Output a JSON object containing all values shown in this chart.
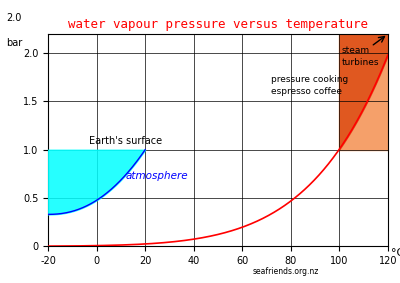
{
  "title": "water vapour pressure versus temperature",
  "title_color": "red",
  "xlim": [
    -20,
    120
  ],
  "ylim": [
    0,
    2.2
  ],
  "yticks": [
    0,
    0.5,
    1.0,
    1.5,
    2.0
  ],
  "xticks": [
    -20,
    0,
    20,
    40,
    60,
    80,
    100,
    120
  ],
  "background_color": "white",
  "watermark": "seafriends.org.nz",
  "orange_color": "#F5A06A",
  "dark_orange_color": "#E05820",
  "cyan_color": "cyan",
  "curve_color": "red",
  "blue_line_color": "blue",
  "title_fontsize": 9,
  "tick_fontsize": 7,
  "annot_fontsize": 7,
  "ylabel_2": "2.0",
  "ylabel_bar": "bar"
}
